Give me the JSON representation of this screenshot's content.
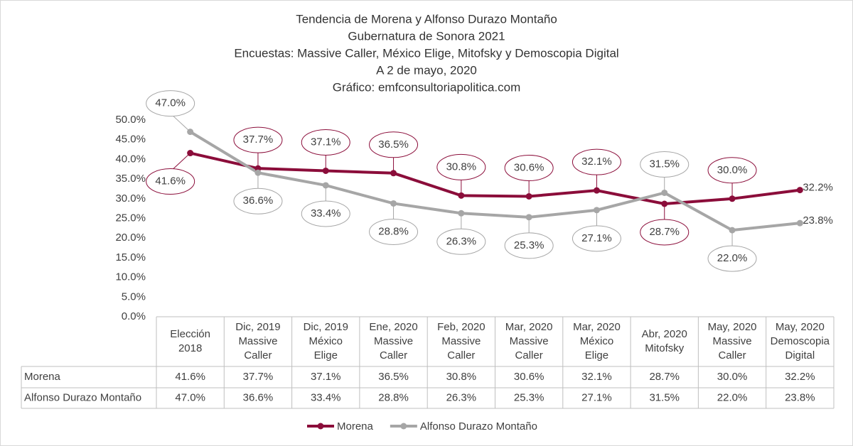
{
  "chart_data": {
    "type": "line",
    "title": [
      "Tendencia de Morena y Alfonso Durazo Montaño",
      "Gubernatura de Sonora 2021",
      "Encuestas: Massive Caller, México Elige, Mitofsky y Demoscopia Digital",
      "A 2 de mayo, 2020",
      "Gráfico: emfconsultoriapolitica.com"
    ],
    "categories": [
      [
        "Elección",
        "2018"
      ],
      [
        "Dic, 2019",
        "Massive",
        "Caller"
      ],
      [
        "Dic, 2019",
        "México",
        "Elige"
      ],
      [
        "Ene, 2020",
        "Massive",
        "Caller"
      ],
      [
        "Feb, 2020",
        "Massive",
        "Caller"
      ],
      [
        "Mar, 2020",
        "Massive",
        "Caller"
      ],
      [
        "Mar, 2020",
        "México",
        "Elige"
      ],
      [
        "Abr, 2020",
        "Mitofsky"
      ],
      [
        "May, 2020",
        "Massive",
        "Caller"
      ],
      [
        "May, 2020",
        "Demoscopia",
        "Digital"
      ]
    ],
    "series": [
      {
        "name": "Morena",
        "color": "#8b0d3a",
        "values": [
          41.6,
          37.7,
          37.1,
          36.5,
          30.8,
          30.6,
          32.1,
          28.7,
          30.0,
          32.2
        ],
        "value_labels": [
          "41.6%",
          "37.7%",
          "37.1%",
          "36.5%",
          "30.8%",
          "30.6%",
          "32.1%",
          "28.7%",
          "30.0%",
          "32.2%"
        ]
      },
      {
        "name": "Alfonso Durazo Montaño",
        "color": "#a6a6a6",
        "values": [
          47.0,
          36.6,
          33.4,
          28.8,
          26.3,
          25.3,
          27.1,
          31.5,
          22.0,
          23.8
        ],
        "value_labels": [
          "47.0%",
          "36.6%",
          "33.4%",
          "28.8%",
          "26.3%",
          "25.3%",
          "27.1%",
          "31.5%",
          "22.0%",
          "23.8%"
        ]
      }
    ],
    "ylim": [
      0,
      50
    ],
    "yticks": [
      {
        "value": 0,
        "label": "0.0%"
      },
      {
        "value": 5,
        "label": "5.0%"
      },
      {
        "value": 10,
        "label": "10.0%"
      },
      {
        "value": 15,
        "label": "15.0%"
      },
      {
        "value": 20,
        "label": "20.0%"
      },
      {
        "value": 25,
        "label": "25.0%"
      },
      {
        "value": 30,
        "label": "30.0%"
      },
      {
        "value": 35,
        "label": "35.0%"
      },
      {
        "value": 40,
        "label": "40.0%"
      },
      {
        "value": 45,
        "label": "45.0%"
      },
      {
        "value": 50,
        "label": "50.0%"
      }
    ],
    "first_label_color": "#00a03c",
    "last_label_color": "#e00000"
  }
}
